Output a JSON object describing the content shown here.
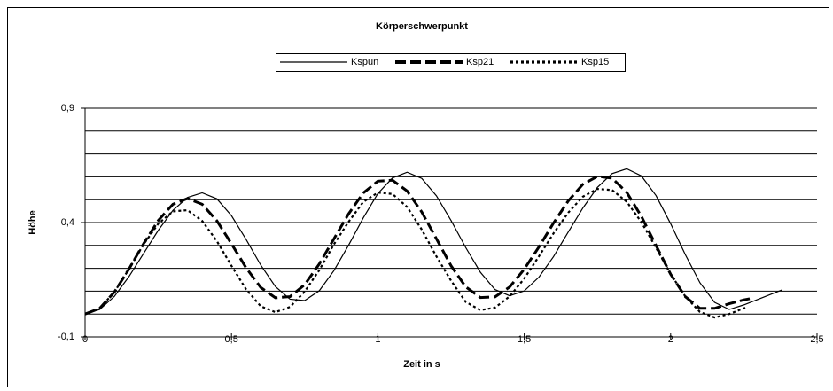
{
  "chart_data": {
    "type": "line",
    "title": "Körperschwerpunkt",
    "xlabel": "Zeit in s",
    "ylabel": "Höhe",
    "xlim": [
      0,
      2.5
    ],
    "xticks": [
      0,
      {
        "value": 0.5,
        "label": "0,5"
      },
      1,
      {
        "value": 1.5,
        "label": "1,5"
      },
      2,
      {
        "value": 2.5,
        "label": "2,5"
      }
    ],
    "ylim": [
      -0.1,
      0.9
    ],
    "yticks": [
      {
        "value": -0.1,
        "label": "-0,1"
      },
      {
        "value": 0.4,
        "label": "0,4"
      },
      {
        "value": 0.9,
        "label": "0,9"
      }
    ],
    "ygrid": [
      -0.1,
      0,
      0.1,
      0.2,
      0.3,
      0.4,
      0.5,
      0.6,
      0.7,
      0.8,
      0.9
    ],
    "legend": "top",
    "series": [
      {
        "name": "Kspun",
        "color": "#000000",
        "line_style": "solid",
        "x": [
          0,
          0.05,
          0.1,
          0.15,
          0.2,
          0.25,
          0.3,
          0.35,
          0.4,
          0.45,
          0.5,
          0.55,
          0.6,
          0.65,
          0.7,
          0.75,
          0.8,
          0.85,
          0.9,
          0.95,
          1,
          1.05,
          1.1,
          1.15,
          1.2,
          1.25,
          1.3,
          1.35,
          1.4,
          1.45,
          1.5,
          1.55,
          1.6,
          1.65,
          1.7,
          1.75,
          1.8,
          1.85,
          1.9,
          1.95,
          2,
          2.05,
          2.1,
          2.15,
          2.2,
          2.25,
          2.3,
          2.35,
          2.38
        ],
        "values": [
          0,
          0.02,
          0.077,
          0.164,
          0.265,
          0.366,
          0.453,
          0.51,
          0.53,
          0.504,
          0.43,
          0.326,
          0.214,
          0.12,
          0.065,
          0.059,
          0.102,
          0.19,
          0.301,
          0.42,
          0.527,
          0.595,
          0.62,
          0.593,
          0.517,
          0.409,
          0.291,
          0.183,
          0.107,
          0.08,
          0.101,
          0.161,
          0.251,
          0.358,
          0.463,
          0.554,
          0.614,
          0.635,
          0.604,
          0.518,
          0.395,
          0.26,
          0.137,
          0.051,
          0.02,
          0.04,
          0.065,
          0.09,
          0.105
        ]
      },
      {
        "name": "Ksp21",
        "color": "#000000",
        "line_style": "dashed",
        "x": [
          0,
          0.05,
          0.1,
          0.15,
          0.2,
          0.25,
          0.3,
          0.35,
          0.4,
          0.45,
          0.5,
          0.55,
          0.6,
          0.65,
          0.7,
          0.75,
          0.8,
          0.85,
          0.9,
          0.95,
          1,
          1.05,
          1.1,
          1.15,
          1.2,
          1.25,
          1.3,
          1.35,
          1.4,
          1.45,
          1.5,
          1.55,
          1.6,
          1.65,
          1.7,
          1.75,
          1.8,
          1.85,
          1.9,
          1.95,
          2,
          2.05,
          2.1,
          2.15,
          2.2,
          2.25,
          2.27
        ],
        "values": [
          0,
          0.025,
          0.096,
          0.197,
          0.308,
          0.409,
          0.48,
          0.505,
          0.48,
          0.408,
          0.307,
          0.202,
          0.116,
          0.071,
          0.076,
          0.128,
          0.219,
          0.329,
          0.438,
          0.529,
          0.581,
          0.585,
          0.538,
          0.446,
          0.329,
          0.211,
          0.119,
          0.072,
          0.075,
          0.118,
          0.196,
          0.293,
          0.398,
          0.494,
          0.567,
          0.602,
          0.594,
          0.532,
          0.427,
          0.3,
          0.174,
          0.076,
          0.025,
          0.025,
          0.045,
          0.062,
          0.067
        ]
      },
      {
        "name": "Ksp15",
        "color": "#000000",
        "line_style": "dotted",
        "x": [
          0,
          0.05,
          0.1,
          0.15,
          0.2,
          0.25,
          0.3,
          0.35,
          0.4,
          0.45,
          0.5,
          0.55,
          0.6,
          0.65,
          0.7,
          0.75,
          0.8,
          0.85,
          0.9,
          0.95,
          1,
          1.05,
          1.1,
          1.15,
          1.2,
          1.25,
          1.3,
          1.35,
          1.4,
          1.45,
          1.5,
          1.55,
          1.6,
          1.65,
          1.7,
          1.75,
          1.8,
          1.85,
          1.9,
          1.95,
          2,
          2.05,
          2.1,
          2.15,
          2.2,
          2.26
        ],
        "values": [
          0,
          0.025,
          0.096,
          0.197,
          0.305,
          0.395,
          0.449,
          0.454,
          0.407,
          0.319,
          0.211,
          0.108,
          0.034,
          0.008,
          0.031,
          0.098,
          0.192,
          0.305,
          0.403,
          0.49,
          0.531,
          0.525,
          0.468,
          0.369,
          0.252,
          0.146,
          0.053,
          0.017,
          0.028,
          0.077,
          0.155,
          0.252,
          0.353,
          0.443,
          0.513,
          0.547,
          0.542,
          0.491,
          0.402,
          0.29,
          0.175,
          0.077,
          0.009,
          -0.015,
          0,
          0.03
        ]
      }
    ]
  }
}
